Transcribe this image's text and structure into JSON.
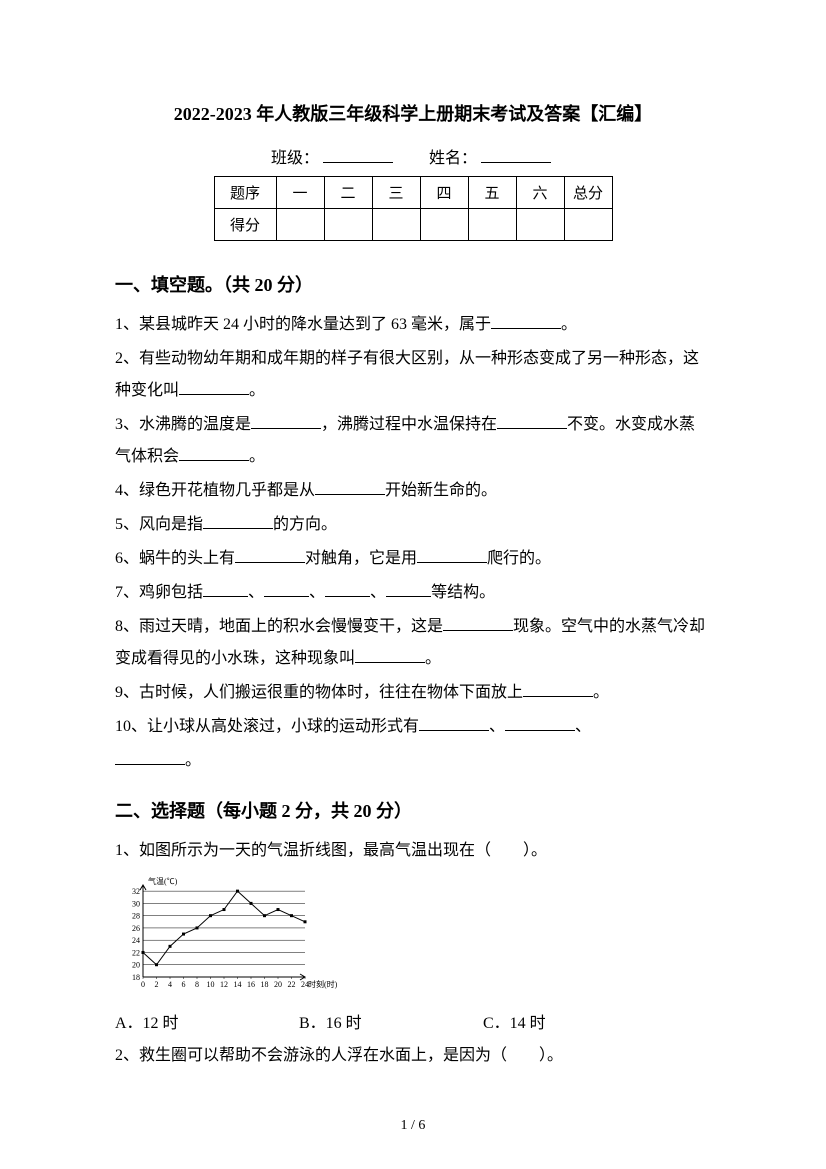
{
  "title": "2022-2023 年人教版三年级科学上册期末考试及答案【汇编】",
  "info": {
    "class_label": "班级：",
    "name_label": "姓名："
  },
  "score_table": {
    "row1_label": "题序",
    "row2_label": "得分",
    "cols": [
      "一",
      "二",
      "三",
      "四",
      "五",
      "六",
      "总分"
    ]
  },
  "section1": {
    "heading": "一、填空题。（共 20 分）",
    "q1a": "1、某县城昨天 24 小时的降水量达到了 63 毫米，属于",
    "q1b": "。",
    "q2a": "2、有些动物幼年期和成年期的样子有很大区别，从一种形态变成了另一种形态，这种变化叫",
    "q2b": "。",
    "q3a": "3、水沸腾的温度是",
    "q3b": "，沸腾过程中水温保持在",
    "q3c": "不变。水变成水蒸气体积会",
    "q3d": "。",
    "q4a": "4、绿色开花植物几乎都是从",
    "q4b": "开始新生命的。",
    "q5a": "5、风向是指",
    "q5b": "的方向。",
    "q6a": "6、蜗牛的头上有",
    "q6b": "对触角，它是用",
    "q6c": "爬行的。",
    "q7a": "7、鸡卵包括",
    "q7b": "、",
    "q7c": "、",
    "q7d": "、",
    "q7e": "等结构。",
    "q8a": "8、雨过天晴，地面上的积水会慢慢变干，这是",
    "q8b": "现象。空气中的水蒸气冷却变成看得见的小水珠，这种现象叫",
    "q8c": "。",
    "q9a": "9、古时候，人们搬运很重的物体时，往往在物体下面放上",
    "q9b": "。",
    "q10a": "10、让小球从高处滚过，小球的运动形式有",
    "q10b": "、",
    "q10c": "、",
    "q10d": "。"
  },
  "section2": {
    "heading": "二、选择题（每小题 2 分，共 20 分）",
    "q1": "1、如图所示为一天的气温折线图，最高气温出现在（　　）。",
    "q1_options": {
      "a": "A．12 时",
      "b": "B．16 时",
      "c": "C．14 时"
    },
    "q2": "2、救生圈可以帮助不会游泳的人浮在水面上，是因为（　　）。"
  },
  "chart": {
    "type": "line",
    "y_label": "气温(℃)",
    "x_label": "时刻(时)",
    "x_ticks": [
      "0",
      "2",
      "4",
      "6",
      "8",
      "10",
      "12",
      "14",
      "16",
      "18",
      "20",
      "22",
      "24"
    ],
    "y_ticks": [
      "18",
      "20",
      "22",
      "24",
      "26",
      "28",
      "30",
      "32"
    ],
    "x_values": [
      0,
      2,
      4,
      6,
      8,
      10,
      12,
      14,
      16,
      18,
      20,
      22,
      24
    ],
    "y_values": [
      22,
      20,
      23,
      25,
      26,
      28,
      29,
      32,
      30,
      28,
      29,
      28,
      27
    ],
    "line_color": "#000000",
    "grid_color": "#000000",
    "background_color": "#ffffff",
    "font_size": 8,
    "x_range": [
      0,
      24
    ],
    "y_range": [
      18,
      33
    ],
    "marker": "square",
    "marker_size": 3
  },
  "pagenum": "1 / 6"
}
